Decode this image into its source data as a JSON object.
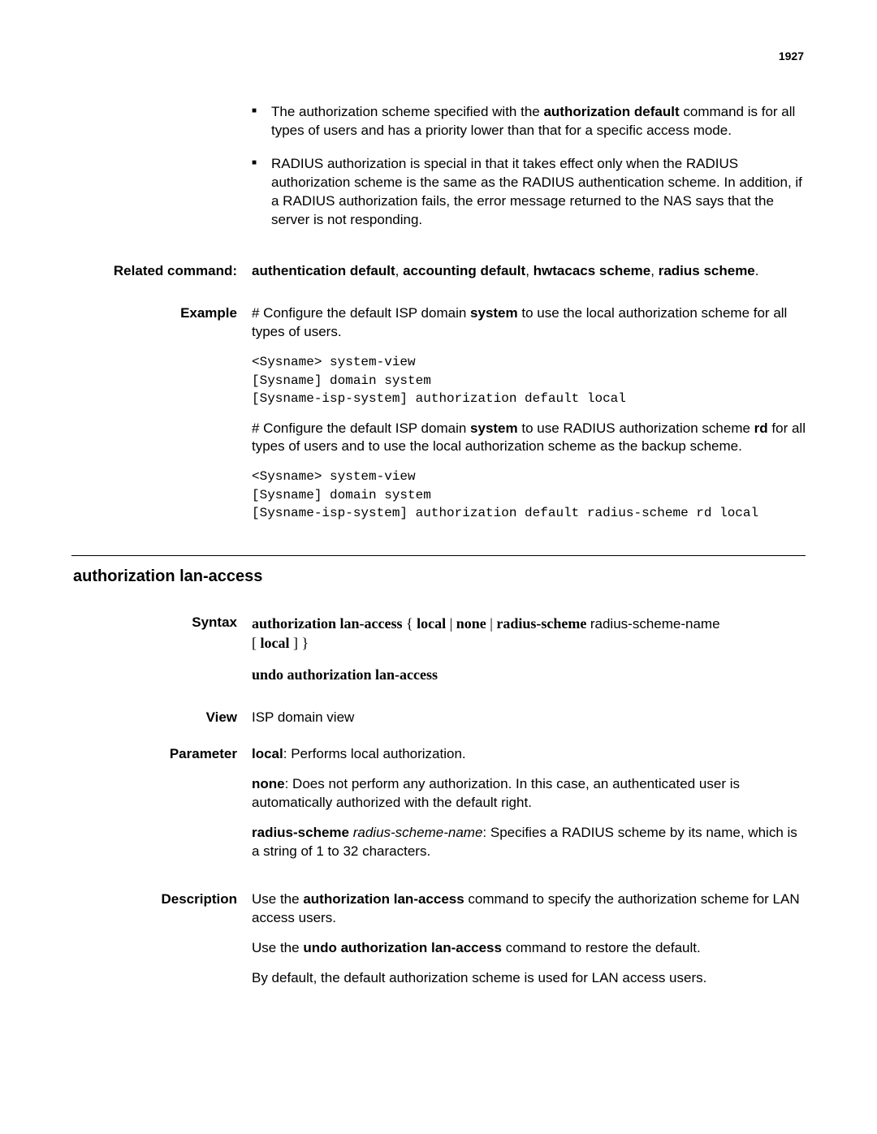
{
  "page_number": "1927",
  "bullets": [
    {
      "pre": "The authorization scheme specified with the ",
      "bold": "authorization default",
      "post": " command is for all types of users and has a priority lower than that for a specific access mode."
    },
    {
      "text": "RADIUS authorization is special in that it takes effect only when the RADIUS authorization scheme is the same as the RADIUS authentication scheme. In addition, if a RADIUS authorization fails, the error message returned to the NAS says that the server is not responding."
    }
  ],
  "related_label": "Related command:",
  "related_pre": "authentication default",
  "related_sep1": ", ",
  "related_b2": "accounting default",
  "related_sep2": ", ",
  "related_b3": "hwtacacs scheme",
  "related_sep3": ", ",
  "related_b4": "radius scheme",
  "related_end": ".",
  "example_label": "Example",
  "example_p1_pre": "# Configure the default ISP domain ",
  "example_p1_bold": "system",
  "example_p1_post": " to use the local authorization scheme for all types of users.",
  "example_code1": "<Sysname> system-view\n[Sysname] domain system\n[Sysname-isp-system] authorization default local",
  "example_p2_pre": "# Configure the default ISP domain ",
  "example_p2_bold1": "system",
  "example_p2_mid": " to use RADIUS authorization scheme ",
  "example_p2_bold2": "rd",
  "example_p2_post": " for all types of users and to use the local authorization scheme as the backup scheme.",
  "example_code2": "<Sysname> system-view\n[Sysname] domain system\n[Sysname-isp-system] authorization default radius-scheme rd local",
  "section_title": "authorization lan-access",
  "syntax_label": "Syntax",
  "syntax_b1": "authorization lan-access",
  "syntax_t1": " { ",
  "syntax_b2": "local",
  "syntax_t2": " | ",
  "syntax_b3": "none",
  "syntax_t3": " | ",
  "syntax_b4": "radius-scheme",
  "syntax_t4": " ",
  "syntax_arg": "radius-scheme-name",
  "syntax_t5": " [ ",
  "syntax_b5": "local",
  "syntax_t6": " ] }",
  "syntax_undo": "undo authorization lan-access",
  "view_label": "View",
  "view_text": "ISP domain view",
  "parameter_label": "Parameter",
  "param_local_b": "local",
  "param_local_t": ": Performs local authorization.",
  "param_none_b": "none",
  "param_none_t": ": Does not perform any authorization. In this case, an authenticated user is automatically authorized with the default right.",
  "param_rs_b": "radius-scheme",
  "param_rs_i": " radius-scheme-name",
  "param_rs_t": ": Specifies a RADIUS scheme by its name, which is a string of 1 to 32 characters.",
  "description_label": "Description",
  "desc_p1_pre": "Use the ",
  "desc_p1_b": "authorization lan-access",
  "desc_p1_post": " command to specify the authorization scheme for LAN access users.",
  "desc_p2_pre": "Use the ",
  "desc_p2_b": "undo authorization lan-access",
  "desc_p2_post": " command to restore the default.",
  "desc_p3": "By default, the default authorization scheme is used for LAN access users."
}
